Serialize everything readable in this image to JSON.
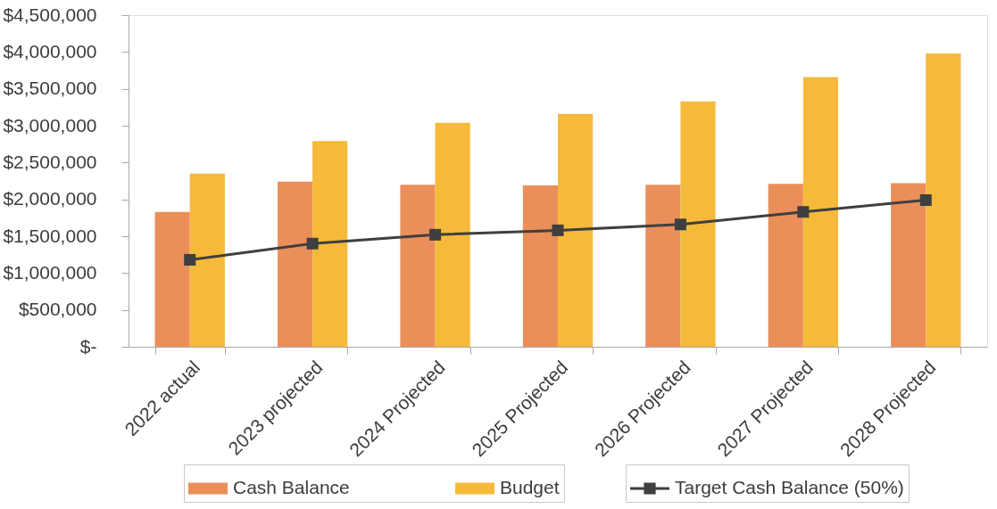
{
  "chart_data": {
    "type": "bar",
    "categories": [
      "2022 actual",
      "2023 projected",
      "2024 Projected",
      "2025 Projected",
      "2026 Projected",
      "2027 Projected",
      "2028 Projected"
    ],
    "series": [
      {
        "name": "Cash Balance",
        "color": "#ea8f5a",
        "values": [
          1830000,
          2240000,
          2200000,
          2190000,
          2200000,
          2210000,
          2220000
        ]
      },
      {
        "name": "Budget",
        "color": "#f5ba3a",
        "values": [
          2350000,
          2790000,
          3040000,
          3160000,
          3330000,
          3660000,
          3980000
        ]
      },
      {
        "name": "Target Cash Balance (50%)",
        "type": "line",
        "color": "#3f3f3f",
        "marker": "square",
        "line_style": "solid",
        "values": [
          1180000,
          1400000,
          1520000,
          1580000,
          1660000,
          1830000,
          1990000
        ]
      }
    ],
    "ylim": [
      0,
      4500000
    ],
    "yticks": [
      {
        "value": 0,
        "label": "$-"
      },
      {
        "value": 500000,
        "label": "$500,000"
      },
      {
        "value": 1000000,
        "label": "$1,000,000"
      },
      {
        "value": 1500000,
        "label": "$1,500,000"
      },
      {
        "value": 2000000,
        "label": "$2,000,000"
      },
      {
        "value": 2500000,
        "label": "$2,500,000"
      },
      {
        "value": 3000000,
        "label": "$3,000,000"
      },
      {
        "value": 3500000,
        "label": "$3,500,000"
      },
      {
        "value": 4000000,
        "label": "$4,000,000"
      },
      {
        "value": 4500000,
        "label": "$4,500,000"
      }
    ],
    "grid": false,
    "legend": "bottom"
  }
}
